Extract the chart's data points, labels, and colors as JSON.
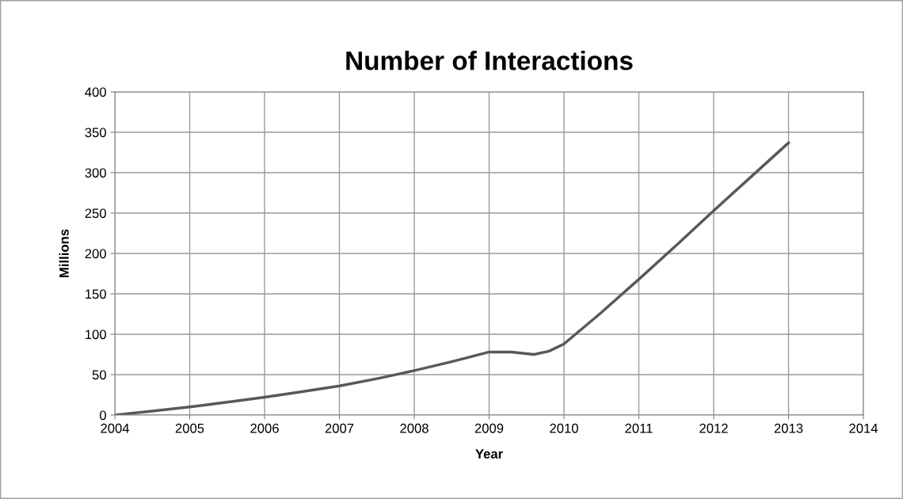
{
  "chart_data": {
    "type": "line",
    "title": "Number of Interactions",
    "xlabel": "Year",
    "ylabel": "Millions",
    "x": [
      2004,
      2004.5,
      2005,
      2005.5,
      2006,
      2006.5,
      2007,
      2007.5,
      2008,
      2008.5,
      2009,
      2009.3,
      2009.6,
      2009.8,
      2010,
      2010.5,
      2011,
      2011.5,
      2012,
      2012.5,
      2013
    ],
    "series": [
      {
        "color": "#595959",
        "values": [
          0,
          5,
          10,
          16,
          22,
          29,
          36,
          45,
          55,
          66,
          78,
          78,
          75,
          79,
          88,
          127,
          168,
          210,
          253,
          295,
          337
        ]
      }
    ],
    "xlim": [
      2004,
      2014
    ],
    "xticks": [
      2004,
      2005,
      2006,
      2007,
      2008,
      2009,
      2010,
      2011,
      2012,
      2013,
      2014
    ],
    "ylim": [
      0,
      400
    ],
    "yticks": [
      0,
      50,
      100,
      150,
      200,
      250,
      300,
      350,
      400
    ],
    "grid": true,
    "marker": "none",
    "line_style": "solid"
  }
}
